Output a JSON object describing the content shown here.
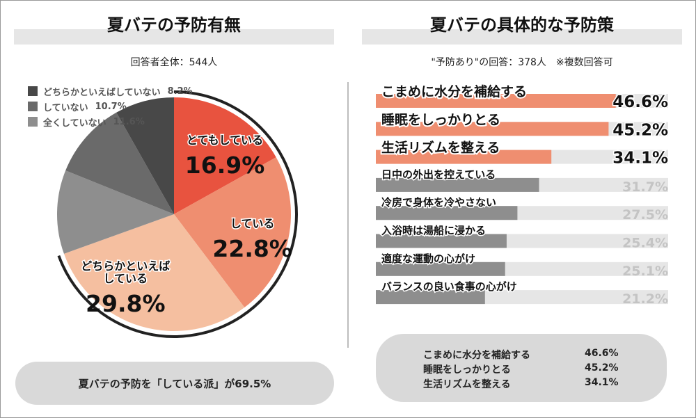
{
  "left_panel": {
    "title": "夏バテの予防有無",
    "subtitle": "回答者全体：544人",
    "summary": "夏バテの予防を「している派」が69.5%"
  },
  "right_panel": {
    "title": "夏バテの具体的な予防策",
    "subtitle": "\"予防あり\"の回答：378人　※複数回答可",
    "summary_items": [
      {
        "label": "こまめに水分を補給する",
        "value": "46.6%"
      },
      {
        "label": "睡眠をしっかりとる",
        "value": "45.2%"
      },
      {
        "label": "生活リズムを整える",
        "value": "34.1%"
      }
    ]
  },
  "chart_data": [
    {
      "type": "pie",
      "title": "夏バテの予防有無",
      "slices": [
        {
          "label": "とてもしている",
          "value": 16.9,
          "value_label": "16.9%",
          "color": "#e8533f",
          "callout": true
        },
        {
          "label": "している",
          "value": 22.8,
          "value_label": "22.8%",
          "color": "#ef8e70",
          "callout": true
        },
        {
          "label": "どちらかといえばしている",
          "value": 29.8,
          "value_label": "29.8%",
          "color": "#f5bfa0",
          "callout": true
        },
        {
          "label": "全くしていない",
          "value": 11.6,
          "value_label": "11.6%",
          "color": "#8e8e8e",
          "callout": false
        },
        {
          "label": "していない",
          "value": 10.7,
          "value_label": "10.7%",
          "color": "#6a6a6a",
          "callout": false
        },
        {
          "label": "どちらかといえばしていない",
          "value": 8.2,
          "value_label": "8.2%",
          "color": "#484848",
          "callout": false
        }
      ],
      "legend": [
        {
          "label": "どちらかといえばしていない",
          "value_label": "8.2%",
          "color": "#484848"
        },
        {
          "label": "していない",
          "value_label": "10.7%",
          "color": "#6a6a6a"
        },
        {
          "label": "全くしていない",
          "value_label": "11.6%",
          "color": "#8e8e8e"
        }
      ]
    },
    {
      "type": "bar",
      "orientation": "horizontal",
      "title": "夏バテの具体的な予防策",
      "xlim": [
        0,
        55
      ],
      "categories": [
        "こまめに水分を補給する",
        "睡眠をしっかりとる",
        "生活リズムを整える",
        "日中の外出を控えている",
        "冷房で身体を冷やさない",
        "入浴時は湯船に浸かる",
        "適度な運動の心がけ",
        "バランスの良い食事の心がけ"
      ],
      "values": [
        46.6,
        45.2,
        34.1,
        31.7,
        27.5,
        25.4,
        25.1,
        21.2
      ],
      "value_labels": [
        "46.6%",
        "45.2%",
        "34.1%",
        "31.7%",
        "27.5%",
        "25.4%",
        "25.1%",
        "21.2%"
      ],
      "highlighted": [
        true,
        true,
        true,
        false,
        false,
        false,
        false,
        false
      ],
      "colors": {
        "highlight_bar": "#ef8e70",
        "normal_bar": "#8e8e8e",
        "track": "#e6e6e6",
        "highlight_text": "#111111",
        "normal_text": "#c4c4c4"
      }
    }
  ]
}
